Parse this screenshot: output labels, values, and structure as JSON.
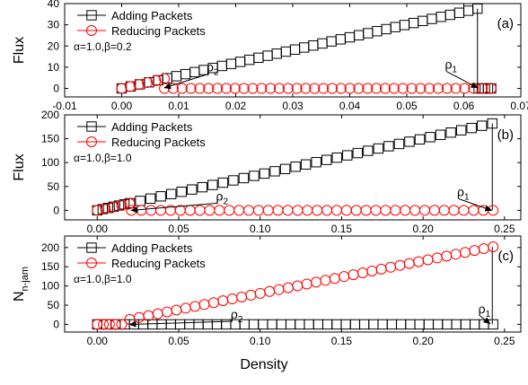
{
  "figure": {
    "xlabel": "Density"
  },
  "chart_data": [
    {
      "id": "a",
      "type": "scatter",
      "panel_label": "(a)",
      "ylabel": "Flux",
      "ylabel_sub": "",
      "params": "α=1.0,β=0.2",
      "xlim": [
        -0.01,
        0.07
      ],
      "ylim": [
        -4,
        40
      ],
      "xticks": [
        -0.01,
        0.0,
        0.01,
        0.02,
        0.03,
        0.04,
        0.05,
        0.06,
        0.07
      ],
      "xtick_labels": [
        "-0.01",
        "0.00",
        "0.01",
        "0.02",
        "0.03",
        "0.04",
        "0.05",
        "0.06",
        "0.07"
      ],
      "yticks": [
        0,
        10,
        20,
        30,
        40
      ],
      "ytick_labels": [
        "0",
        "10",
        "20",
        "30",
        "40"
      ],
      "legend": [
        "Adding Packets",
        "Reducing Packets"
      ],
      "annotations": [
        {
          "label": "ρ",
          "sub": "2",
          "from": [
            0.0152,
            6.8
          ],
          "to": [
            0.0075,
            0.3
          ]
        },
        {
          "label": "ρ",
          "sub": "1",
          "from": [
            0.057,
            8.0
          ],
          "to": [
            0.0624,
            0.3
          ]
        }
      ],
      "vline": {
        "x": 0.0624,
        "y1": 37.6,
        "y2": 0.3
      },
      "series": [
        {
          "name": "Adding Packets",
          "marker": "square",
          "color": "#000000",
          "segments": [
            {
              "x0": 0.0,
              "x1": 0.0624,
              "n": 40,
              "y0": 0.0,
              "y1": 37.6,
              "skip_first": 0
            },
            {
              "x0": 0.0626,
              "x1": 0.0648,
              "n": 5,
              "y0": 0.0,
              "y1": 0.0,
              "skip_first": 0
            }
          ]
        },
        {
          "name": "Reducing Packets",
          "marker": "circle",
          "color": "#ff0000",
          "segments": [
            {
              "x0": 0.0,
              "x1": 0.0075,
              "n": 6,
              "y0": 0.0,
              "y1": 4.6,
              "skip_first": 0
            },
            {
              "x0": 0.0075,
              "x1": 0.0648,
              "n": 38,
              "y0": 0.0,
              "y1": 0.0,
              "skip_first": 0
            }
          ]
        }
      ]
    },
    {
      "id": "b",
      "type": "scatter",
      "panel_label": "(b)",
      "ylabel": "Flux",
      "ylabel_sub": "",
      "params": "α=1.0,β=1.0",
      "xlim": [
        -0.02,
        0.26
      ],
      "ylim": [
        -20,
        200
      ],
      "xticks": [
        0.0,
        0.05,
        0.1,
        0.15,
        0.2,
        0.25
      ],
      "xtick_labels": [
        "0.00",
        "0.05",
        "0.10",
        "0.15",
        "0.20",
        "0.25"
      ],
      "yticks": [
        0,
        50,
        100,
        150,
        200
      ],
      "ytick_labels": [
        "0",
        "50",
        "100",
        "150",
        "200"
      ],
      "legend": [
        "Adding Packets",
        "Reducing Packets"
      ],
      "annotations": [
        {
          "label": "ρ",
          "sub": "2",
          "from": [
            0.074,
            15.0
          ],
          "to": [
            0.021,
            0.0
          ]
        },
        {
          "label": "ρ",
          "sub": "1",
          "from": [
            0.222,
            24.0
          ],
          "to": [
            0.242,
            0.0
          ]
        }
      ],
      "vline": {
        "x": 0.2425,
        "y1": 182.0,
        "y2": 0.0
      },
      "series": [
        {
          "name": "Adding Packets",
          "marker": "square",
          "color": "#000000",
          "segments": [
            {
              "x0": 0.0,
              "x1": 0.02,
              "n": 7,
              "y0": 0.0,
              "y1": 15.0,
              "skip_first": 0
            },
            {
              "x0": 0.02,
              "x1": 0.2425,
              "n": 36,
              "y0": 15.0,
              "y1": 182.0,
              "skip_first": 1
            }
          ]
        },
        {
          "name": "Reducing Packets",
          "marker": "circle",
          "color": "#ff0000",
          "segments": [
            {
              "x0": 0.0,
              "x1": 0.02,
              "n": 5,
              "y0": 0.0,
              "y1": 14.0,
              "skip_first": 0
            },
            {
              "x0": 0.021,
              "x1": 0.243,
              "n": 38,
              "y0": 0.0,
              "y1": 0.0,
              "skip_first": 0
            }
          ]
        }
      ]
    },
    {
      "id": "c",
      "type": "scatter",
      "panel_label": "(c)",
      "ylabel": "N",
      "ylabel_sub": "n-jam",
      "params": "α=1.0,β=1.0",
      "xlim": [
        -0.02,
        0.26
      ],
      "ylim": [
        -20,
        230
      ],
      "xticks": [
        0.0,
        0.05,
        0.1,
        0.15,
        0.2,
        0.25
      ],
      "xtick_labels": [
        "0.00",
        "0.05",
        "0.10",
        "0.15",
        "0.20",
        "0.25"
      ],
      "yticks": [
        0,
        50,
        100,
        150,
        200
      ],
      "ytick_labels": [
        "0",
        "50",
        "100",
        "150",
        "200"
      ],
      "legend": [
        "Adding Packets",
        "Reducing Packets"
      ],
      "annotations": [
        {
          "label": "ρ",
          "sub": "2",
          "from": [
            0.083,
            8.0
          ],
          "to": [
            0.02,
            0.0
          ]
        },
        {
          "label": "ρ",
          "sub": "1",
          "from": [
            0.235,
            22.0
          ],
          "to": [
            0.241,
            2.0
          ]
        }
      ],
      "vline": {
        "x": 0.2425,
        "y1": 202.0,
        "y2": 0.0
      },
      "series": [
        {
          "name": "Adding Packets",
          "marker": "square",
          "color": "#000000",
          "segments": [
            {
              "x0": 0.0,
              "x1": 0.243,
              "n": 44,
              "y0": 0.0,
              "y1": 0.0,
              "skip_first": 0
            }
          ]
        },
        {
          "name": "Reducing Packets",
          "marker": "circle",
          "color": "#ff0000",
          "segments": [
            {
              "x0": 0.0,
              "x1": 0.015,
              "n": 5,
              "y0": 0.0,
              "y1": 0.0,
              "skip_first": 0
            },
            {
              "x0": 0.02,
              "x1": 0.243,
              "n": 40,
              "y0": 13.0,
              "y1": 202.0,
              "skip_first": 0
            }
          ]
        }
      ]
    }
  ]
}
